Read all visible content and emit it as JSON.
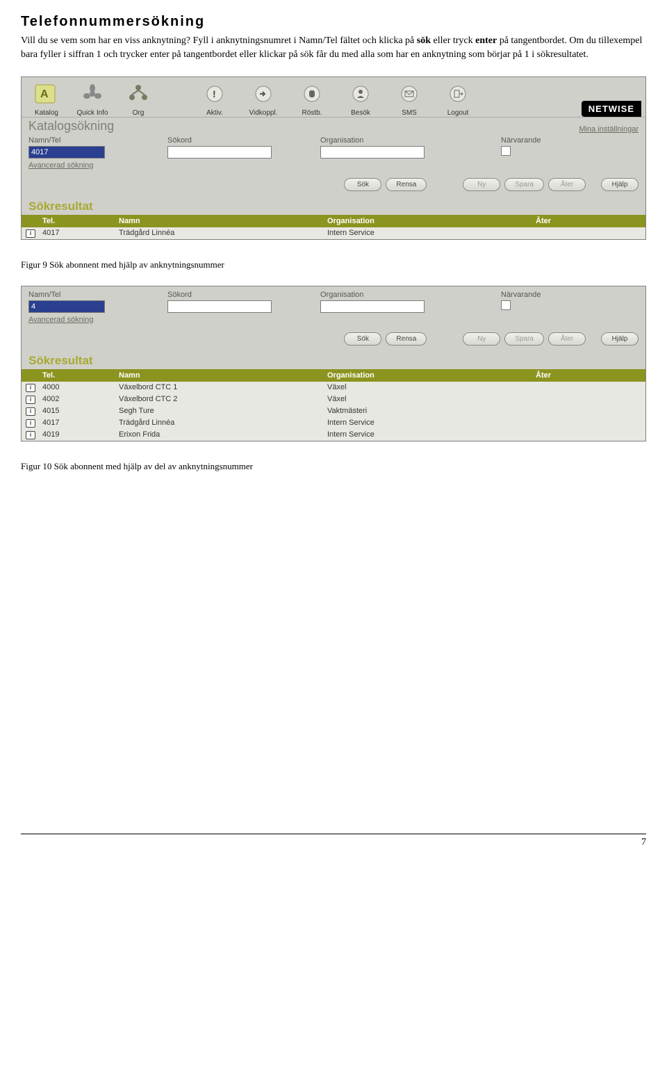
{
  "doc": {
    "title": "Telefonnummersökning",
    "body_pre": "Vill du se vem som har en viss anknytning? Fyll i anknytningsnumret i Namn/Tel fältet och klicka på ",
    "body_b1": "sök",
    "body_mid1": " eller tryck ",
    "body_b2": "enter",
    "body_mid2": " på tangentbordet. Om du tillexempel bara fyller i siffran 1 och trycker enter på tangentbordet eller klickar på sök får du med alla som har en anknytning som börjar på 1 i sökresultatet.",
    "caption1": "Figur 9  Sök abonnent med hjälp av anknytningsnummer",
    "caption2": "Figur 10  Sök abonnent med hjälp av del av anknytningsnummer",
    "page_num": "7"
  },
  "tb": {
    "katalog": "Katalog",
    "quick": "Quick Info",
    "org": "Org",
    "aktiv": "Aktiv.",
    "vidkoppl": "Vidkoppl.",
    "rostb": "Röstb.",
    "besok": "Besök",
    "sms": "SMS",
    "logout": "Logout",
    "netwise": "NETWISE"
  },
  "search": {
    "section": "Katalogsökning",
    "mina": "Mina inställningar",
    "namntel": "Namn/Tel",
    "sokord": "Sökord",
    "org": "Organisation",
    "narv": "Närvarande",
    "adv": "Avancerad sökning",
    "val1": "4017",
    "val2": "4"
  },
  "btns": {
    "sok": "Sök",
    "rensa": "Rensa",
    "ny": "Ny",
    "spara": "Spara",
    "ater": "Åter",
    "hjalp": "Hjälp"
  },
  "res": {
    "title": "Sökresultat",
    "h_tel": "Tel.",
    "h_namn": "Namn",
    "h_org": "Organisation",
    "h_ater": "Åter"
  },
  "rows1": [
    {
      "tel": "4017",
      "namn": "Trädgård Linnéa",
      "org": "Intern Service"
    }
  ],
  "rows2": [
    {
      "tel": "4000",
      "namn": "Växelbord CTC 1",
      "org": "Växel"
    },
    {
      "tel": "4002",
      "namn": "Växelbord CTC 2",
      "org": "Växel"
    },
    {
      "tel": "4015",
      "namn": "Segh Ture",
      "org": "Vaktmästeri"
    },
    {
      "tel": "4017",
      "namn": "Trädgård Linnéa",
      "org": "Intern Service"
    },
    {
      "tel": "4019",
      "namn": "Erixon Frida",
      "org": "Intern Service"
    }
  ],
  "colors": {
    "panel_bg": "#d0d0cb",
    "header_bg": "#8b941f",
    "result_title": "#a8a830",
    "section_title": "#808078"
  }
}
